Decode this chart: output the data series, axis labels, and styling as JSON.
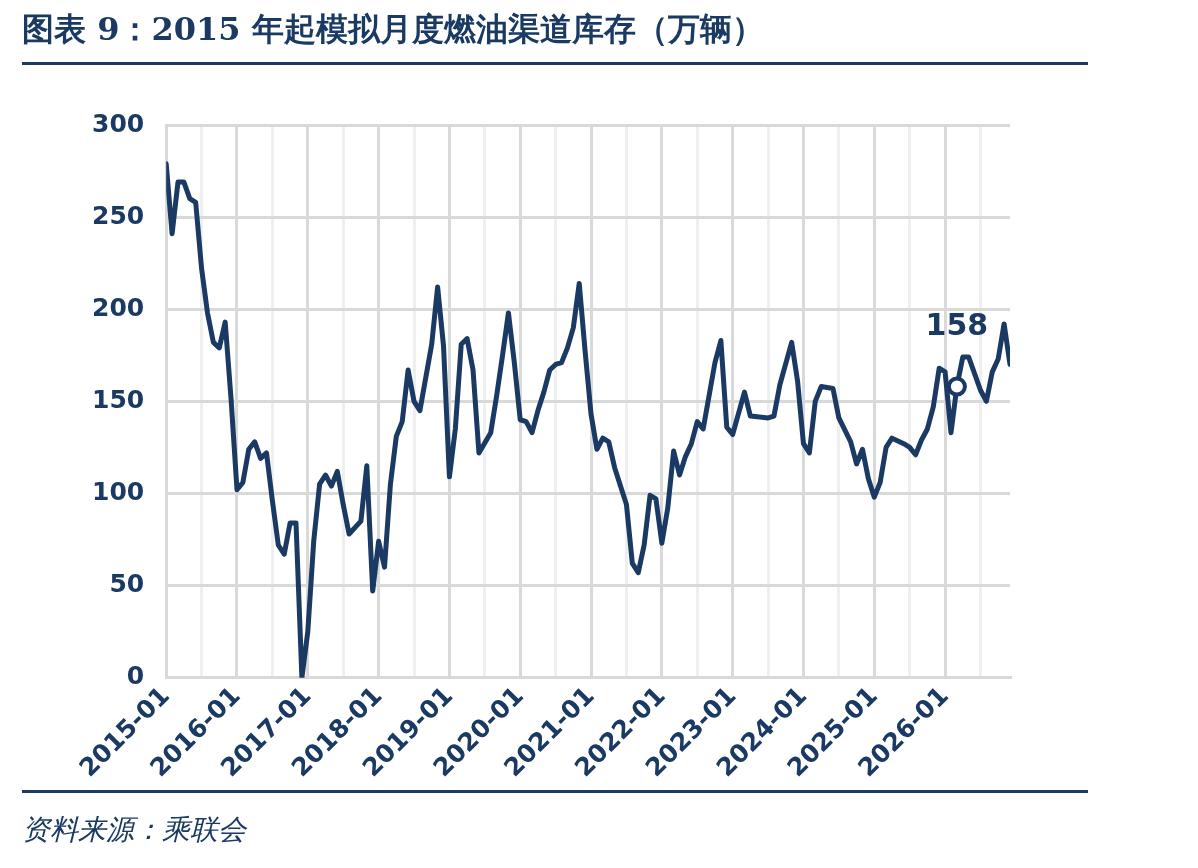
{
  "chart_data": {
    "type": "line",
    "title": "图表 9：2015 年起模拟月度燃油渠道库存（万辆）",
    "annotations": [
      "资料来源：乘联会"
    ],
    "xlim": [
      "2015-01",
      "2026-12"
    ],
    "xticks": [
      "2015-01",
      {
        "value": "2015-07",
        "label": null
      },
      "2016-01",
      {
        "value": "2016-07",
        "label": null
      },
      "2017-01",
      {
        "value": "2017-07",
        "label": null
      },
      "2018-01",
      {
        "value": "2018-07",
        "label": null
      },
      "2019-01",
      {
        "value": "2019-07",
        "label": null
      },
      "2020-01",
      {
        "value": "2020-07",
        "label": null
      },
      "2021-01",
      {
        "value": "2021-07",
        "label": null
      },
      "2022-01",
      {
        "value": "2022-07",
        "label": null
      },
      "2023-01",
      {
        "value": "2023-07",
        "label": null
      },
      "2024-01",
      {
        "value": "2024-07",
        "label": null
      },
      "2025-01",
      {
        "value": "2025-07",
        "label": null
      },
      "2026-01",
      {
        "value": "2026-07",
        "label": null
      }
    ],
    "ylim": [
      0,
      300
    ],
    "yticks": [
      0,
      50,
      100,
      150,
      200,
      250,
      300
    ],
    "grid": true,
    "legend": false,
    "line_style": "solid",
    "marker": "none",
    "series": [
      {
        "color": "#1a3a63",
        "x": [
          "2015-01",
          "2015-02",
          "2015-03",
          "2015-04",
          "2015-05",
          "2015-06",
          "2015-07",
          "2015-08",
          "2015-09",
          "2015-10",
          "2015-11",
          "2015-12",
          "2016-01",
          "2016-02",
          "2016-03",
          "2016-04",
          "2016-05",
          "2016-06",
          "2016-07",
          "2016-08",
          "2016-09",
          "2016-10",
          "2016-11",
          "2016-12",
          "2017-01",
          "2017-02",
          "2017-03",
          "2017-04",
          "2017-05",
          "2017-06",
          "2017-07",
          "2017-08",
          "2017-10",
          "2017-11",
          "2017-12",
          "2018-01",
          "2018-02",
          "2018-03",
          "2018-04",
          "2018-05",
          "2018-06",
          "2018-07",
          "2018-08",
          "2018-10",
          "2018-11",
          "2018-12",
          "2019-01",
          "2019-02",
          "2019-03",
          "2019-04",
          "2019-05",
          "2019-06",
          "2019-08",
          "2019-09",
          "2019-10",
          "2019-11",
          "2019-12",
          "2020-01",
          "2020-02",
          "2020-03",
          "2020-04",
          "2020-05",
          "2020-06",
          "2020-07",
          "2020-08",
          "2020-09",
          "2020-10",
          "2020-11",
          "2020-12",
          "2021-01",
          "2021-02",
          "2021-03",
          "2021-04",
          "2021-05",
          "2021-07",
          "2021-08",
          "2021-09",
          "2021-10",
          "2021-11",
          "2021-12",
          "2022-01",
          "2022-02",
          "2022-03",
          "2022-04",
          "2022-05",
          "2022-06",
          "2022-07",
          "2022-08",
          "2022-10",
          "2022-11",
          "2022-12",
          "2023-01",
          "2023-03",
          "2023-04",
          "2023-07",
          "2023-08",
          "2023-09",
          "2023-11",
          "2023-12",
          "2024-01",
          "2024-02",
          "2024-03",
          "2024-04",
          "2024-06",
          "2024-07",
          "2024-09",
          "2024-10",
          "2024-11",
          "2024-12",
          "2025-01",
          "2025-02",
          "2025-03",
          "2025-04",
          "2025-06",
          "2025-07",
          "2025-08",
          "2025-09",
          "2025-10",
          "2025-11",
          "2025-12",
          "2026-01",
          "2026-02",
          "2026-03",
          "2026-04",
          "2026-05",
          "2026-07",
          "2026-08",
          "2026-09",
          "2026-10",
          "2026-11",
          "2026-12"
        ],
        "values": [
          279,
          241,
          269,
          269,
          260,
          258,
          222,
          198,
          182,
          179,
          193,
          151,
          102,
          106,
          124,
          128,
          119,
          122,
          96,
          72,
          67,
          84,
          84,
          0,
          25,
          74,
          105,
          110,
          104,
          112,
          94,
          78,
          85,
          115,
          47,
          74,
          60,
          105,
          131,
          139,
          167,
          150,
          145,
          181,
          212,
          180,
          109,
          135,
          181,
          184,
          167,
          122,
          133,
          153,
          175,
          198,
          171,
          140,
          139,
          133,
          145,
          155,
          167,
          170,
          171,
          179,
          190,
          214,
          177,
          143,
          124,
          130,
          128,
          114,
          94,
          62,
          57,
          72,
          99,
          97,
          73,
          92,
          123,
          110,
          120,
          127,
          139,
          135,
          171,
          183,
          136,
          132,
          155,
          142,
          141,
          142,
          159,
          182,
          161,
          127,
          122,
          150,
          158,
          157,
          141,
          128,
          116,
          124,
          108,
          98,
          106,
          125,
          130,
          127,
          125,
          121,
          129,
          135,
          147,
          168,
          166,
          133,
          158,
          174,
          174,
          156,
          150,
          166,
          173,
          192,
          170
        ],
        "value_labels": [
          null,
          null,
          null,
          null,
          null,
          null,
          null,
          null,
          null,
          null,
          null,
          null,
          null,
          null,
          null,
          null,
          null,
          null,
          null,
          null,
          null,
          null,
          null,
          null,
          null,
          null,
          null,
          null,
          null,
          null,
          null,
          null,
          null,
          null,
          null,
          null,
          null,
          null,
          null,
          null,
          null,
          null,
          null,
          null,
          null,
          null,
          null,
          null,
          null,
          null,
          null,
          null,
          null,
          null,
          null,
          null,
          null,
          null,
          null,
          null,
          null,
          null,
          null,
          null,
          null,
          null,
          null,
          null,
          null,
          null,
          null,
          null,
          null,
          null,
          null,
          null,
          null,
          null,
          null,
          null,
          null,
          null,
          null,
          null,
          null,
          null,
          null,
          null,
          null,
          null,
          null,
          null,
          null,
          null,
          null,
          null,
          null,
          null,
          null,
          null,
          null,
          null,
          null,
          null,
          null,
          null,
          null,
          null,
          null,
          null,
          null,
          null,
          null,
          null,
          null,
          null,
          null,
          null,
          null,
          null,
          null,
          null,
          "158",
          null,
          null,
          null,
          null,
          null,
          null,
          null,
          null
        ]
      }
    ]
  }
}
